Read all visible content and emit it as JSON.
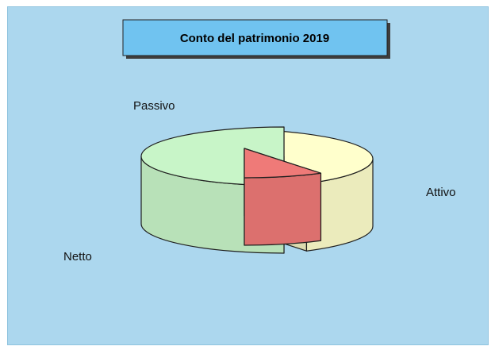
{
  "chart_data": {
    "type": "pie",
    "style": "3d-exploded",
    "title": "Conto del patrimonio 2019",
    "slices": [
      {
        "label": "Attivo",
        "value": 50,
        "color": "#c8f5c8"
      },
      {
        "label": "Passivo",
        "value": 9,
        "color": "#ef7a78"
      },
      {
        "label": "Netto",
        "value": 41,
        "color": "#ffffcc"
      }
    ],
    "legend": "none",
    "grid": false
  },
  "colors": {
    "background": "#acd7ee",
    "title_box": "#70c3f0"
  }
}
